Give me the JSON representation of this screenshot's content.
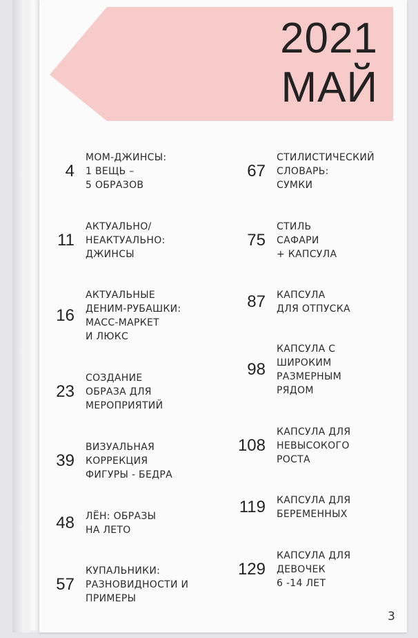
{
  "header": {
    "year": "2021",
    "month": "МАЙ",
    "accent_color": "#f8cbcb"
  },
  "left_column": [
    {
      "page": "4",
      "title": "МОМ-ДЖИНСЫ:\n1 ВЕЩЬ –\n5 ОБРАЗОВ"
    },
    {
      "page": "11",
      "title": "АКТУАЛЬНО/\nНЕАКТУАЛЬНО:\nДЖИНСЫ"
    },
    {
      "page": "16",
      "title": "АКТУАЛЬНЫЕ\nДЕНИМ-РУБАШКИ:\nМАСС-МАРКЕТ\nИ ЛЮКС"
    },
    {
      "page": "23",
      "title": "СОЗДАНИЕ\nОБРАЗА ДЛЯ\nМЕРОПРИЯТИЙ"
    },
    {
      "page": "39",
      "title": "ВИЗУАЛЬНАЯ\nКОРРЕКЦИЯ\nФИГУРЫ - БЕДРА"
    },
    {
      "page": "48",
      "title": "ЛЁН: ОБРАЗЫ\nНА ЛЕТО"
    },
    {
      "page": "57",
      "title": "КУПАЛЬНИКИ:\nРАЗНОВИДНОСТИ И\nПРИМЕРЫ"
    }
  ],
  "right_column": [
    {
      "page": "67",
      "title": "СТИЛИСТИЧЕСКИЙ\nСЛОВАРЬ:\nСУМКИ"
    },
    {
      "page": "75",
      "title": "СТИЛЬ\nСАФАРИ\n+ КАПСУЛА"
    },
    {
      "page": "87",
      "title": "КАПСУЛА\nДЛЯ ОТПУСКА"
    },
    {
      "page": "98",
      "title": "КАПСУЛА С\nШИРОКИМ\nРАЗМЕРНЫМ\nРЯДОМ"
    },
    {
      "page": "108",
      "title": "КАПСУЛА ДЛЯ\nНЕВЫСОКОГО\nРОСТА"
    },
    {
      "page": "119",
      "title": "КАПСУЛА ДЛЯ\nБЕРЕМЕННЫХ"
    },
    {
      "page": "129",
      "title": "КАПСУЛА ДЛЯ\nДЕВОЧЕК\n6 -14 ЛЕТ"
    }
  ],
  "footer": {
    "page_number": "3"
  }
}
